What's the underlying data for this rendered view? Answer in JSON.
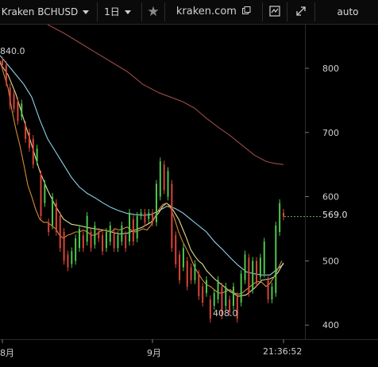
{
  "toolbar": {
    "symbol": "Kraken BCHUSD",
    "interval": "1日",
    "star_icon": "star-icon",
    "site": "kraken.com",
    "popout_icon": "popout-icon",
    "screenshot_icon": "chart-snapshot-icon",
    "fullscreen_icon": "fullscreen-icon",
    "scale": "auto"
  },
  "colors": {
    "up": "#4fc74f",
    "down": "#d9453a",
    "ma_fast": "#d98b3a",
    "ma_mid": "#e0dc96",
    "ma_slow": "#8fd3e8",
    "ma_long": "#9c4a4a"
  },
  "chart_data": {
    "type": "candlestick",
    "ylim": [
      378,
      868
    ],
    "y_ticks": [
      400,
      500,
      600,
      700,
      800
    ],
    "x_labels": [
      "8月",
      "9月",
      "21:36:52"
    ],
    "last_price": "569.0",
    "high_label": "840.0",
    "low_label": "408.0",
    "candles": [
      {
        "o": 812,
        "c": 805
      },
      {
        "o": 805,
        "c": 778
      },
      {
        "o": 770,
        "c": 742
      },
      {
        "o": 760,
        "c": 737
      },
      {
        "o": 748,
        "c": 718
      },
      {
        "o": 725,
        "c": 745
      },
      {
        "o": 712,
        "c": 690
      },
      {
        "o": 700,
        "c": 676
      },
      {
        "o": 690,
        "c": 650
      },
      {
        "o": 655,
        "c": 675
      },
      {
        "o": 635,
        "c": 570
      },
      {
        "o": 590,
        "c": 620
      },
      {
        "o": 560,
        "c": 545
      },
      {
        "o": 555,
        "c": 600
      },
      {
        "o": 590,
        "c": 545
      },
      {
        "o": 570,
        "c": 520
      },
      {
        "o": 545,
        "c": 500
      },
      {
        "o": 510,
        "c": 490
      },
      {
        "o": 495,
        "c": 515
      },
      {
        "o": 500,
        "c": 535
      },
      {
        "o": 520,
        "c": 550
      },
      {
        "o": 540,
        "c": 520
      },
      {
        "o": 530,
        "c": 570
      },
      {
        "o": 545,
        "c": 520
      },
      {
        "o": 525,
        "c": 555
      },
      {
        "o": 545,
        "c": 535
      },
      {
        "o": 540,
        "c": 515
      },
      {
        "o": 520,
        "c": 545
      },
      {
        "o": 530,
        "c": 555
      },
      {
        "o": 545,
        "c": 520
      },
      {
        "o": 520,
        "c": 540
      },
      {
        "o": 530,
        "c": 555
      },
      {
        "o": 540,
        "c": 520
      },
      {
        "o": 530,
        "c": 575
      },
      {
        "o": 565,
        "c": 530
      },
      {
        "o": 535,
        "c": 570
      },
      {
        "o": 570,
        "c": 575
      },
      {
        "o": 575,
        "c": 560
      },
      {
        "o": 565,
        "c": 575
      },
      {
        "o": 575,
        "c": 560
      },
      {
        "o": 560,
        "c": 620
      },
      {
        "o": 600,
        "c": 655
      },
      {
        "o": 650,
        "c": 610
      },
      {
        "o": 600,
        "c": 640
      },
      {
        "o": 620,
        "c": 520
      },
      {
        "o": 540,
        "c": 495
      },
      {
        "o": 510,
        "c": 470
      },
      {
        "o": 490,
        "c": 520
      },
      {
        "o": 500,
        "c": 460
      },
      {
        "o": 490,
        "c": 470
      },
      {
        "o": 470,
        "c": 495
      },
      {
        "o": 480,
        "c": 445
      },
      {
        "o": 460,
        "c": 435
      },
      {
        "o": 450,
        "c": 470
      },
      {
        "o": 440,
        "c": 410
      },
      {
        "o": 430,
        "c": 450
      },
      {
        "o": 440,
        "c": 470
      },
      {
        "o": 460,
        "c": 415
      },
      {
        "o": 430,
        "c": 460
      },
      {
        "o": 440,
        "c": 420
      },
      {
        "o": 430,
        "c": 460
      },
      {
        "o": 445,
        "c": 410
      },
      {
        "o": 435,
        "c": 480
      },
      {
        "o": 470,
        "c": 510
      },
      {
        "o": 505,
        "c": 450
      },
      {
        "o": 455,
        "c": 500
      },
      {
        "o": 500,
        "c": 465
      },
      {
        "o": 475,
        "c": 505
      },
      {
        "o": 480,
        "c": 530
      },
      {
        "o": 470,
        "c": 440
      },
      {
        "o": 440,
        "c": 460
      },
      {
        "o": 450,
        "c": 555
      },
      {
        "o": 545,
        "c": 590
      },
      {
        "o": 575,
        "c": 569
      }
    ],
    "ma_fast": [
      [
        0,
        812
      ],
      [
        5,
        790
      ],
      [
        10,
        770
      ],
      [
        15,
        735
      ],
      [
        20,
        705
      ],
      [
        25,
        680
      ],
      [
        30,
        650
      ],
      [
        35,
        618
      ],
      [
        40,
        600
      ],
      [
        45,
        580
      ],
      [
        50,
        565
      ],
      [
        55,
        560
      ],
      [
        60,
        560
      ],
      [
        65,
        555
      ],
      [
        70,
        550
      ],
      [
        75,
        540
      ],
      [
        80,
        535
      ],
      [
        85,
        540
      ],
      [
        90,
        542
      ],
      [
        95,
        545
      ],
      [
        100,
        545
      ],
      [
        105,
        548
      ],
      [
        110,
        545
      ],
      [
        115,
        540
      ],
      [
        120,
        540
      ],
      [
        125,
        545
      ],
      [
        130,
        548
      ],
      [
        135,
        547
      ],
      [
        140,
        545
      ],
      [
        145,
        550
      ],
      [
        150,
        548
      ],
      [
        155,
        550
      ],
      [
        160,
        553
      ],
      [
        165,
        548
      ],
      [
        170,
        545
      ],
      [
        175,
        547
      ],
      [
        180,
        550
      ],
      [
        185,
        548
      ],
      [
        190,
        555
      ],
      [
        195,
        568
      ],
      [
        200,
        580
      ],
      [
        205,
        588
      ],
      [
        210,
        590
      ],
      [
        215,
        582
      ],
      [
        220,
        565
      ],
      [
        225,
        545
      ],
      [
        230,
        530
      ],
      [
        235,
        518
      ],
      [
        240,
        505
      ],
      [
        245,
        490
      ],
      [
        250,
        480
      ],
      [
        255,
        470
      ],
      [
        260,
        463
      ],
      [
        265,
        460
      ],
      [
        270,
        455
      ],
      [
        275,
        450
      ],
      [
        280,
        450
      ],
      [
        285,
        453
      ],
      [
        290,
        455
      ],
      [
        295,
        450
      ],
      [
        300,
        448
      ],
      [
        305,
        450
      ],
      [
        310,
        455
      ],
      [
        315,
        460
      ],
      [
        320,
        465
      ],
      [
        325,
        468
      ],
      [
        330,
        466
      ],
      [
        335,
        460
      ],
      [
        340,
        465
      ],
      [
        345,
        475
      ],
      [
        350,
        488
      ],
      [
        355,
        500
      ]
    ],
    "ma_mid": [
      [
        0,
        808
      ],
      [
        10,
        790
      ],
      [
        20,
        760
      ],
      [
        30,
        720
      ],
      [
        40,
        680
      ],
      [
        50,
        640
      ],
      [
        60,
        610
      ],
      [
        70,
        585
      ],
      [
        80,
        565
      ],
      [
        90,
        557
      ],
      [
        100,
        555
      ],
      [
        110,
        552
      ],
      [
        120,
        550
      ],
      [
        130,
        548
      ],
      [
        140,
        545
      ],
      [
        150,
        542
      ],
      [
        160,
        543
      ],
      [
        170,
        548
      ],
      [
        180,
        553
      ],
      [
        190,
        560
      ],
      [
        200,
        575
      ],
      [
        205,
        585
      ],
      [
        210,
        590
      ],
      [
        215,
        585
      ],
      [
        220,
        575
      ],
      [
        225,
        565
      ],
      [
        230,
        550
      ],
      [
        235,
        535
      ],
      [
        240,
        518
      ],
      [
        245,
        508
      ],
      [
        250,
        500
      ],
      [
        255,
        495
      ],
      [
        260,
        485
      ],
      [
        270,
        472
      ],
      [
        280,
        462
      ],
      [
        290,
        452
      ],
      [
        300,
        445
      ],
      [
        310,
        447
      ],
      [
        320,
        457
      ],
      [
        330,
        470
      ],
      [
        340,
        472
      ],
      [
        345,
        475
      ],
      [
        350,
        482
      ],
      [
        357,
        497
      ]
    ],
    "ma_slow": [
      [
        0,
        820
      ],
      [
        10,
        805
      ],
      [
        20,
        790
      ],
      [
        30,
        775
      ],
      [
        40,
        755
      ],
      [
        50,
        720
      ],
      [
        60,
        690
      ],
      [
        70,
        670
      ],
      [
        80,
        650
      ],
      [
        90,
        630
      ],
      [
        100,
        615
      ],
      [
        110,
        605
      ],
      [
        120,
        598
      ],
      [
        130,
        590
      ],
      [
        140,
        583
      ],
      [
        150,
        578
      ],
      [
        160,
        574
      ],
      [
        170,
        572
      ],
      [
        180,
        571
      ],
      [
        190,
        572
      ],
      [
        200,
        578
      ],
      [
        210,
        585
      ],
      [
        220,
        582
      ],
      [
        230,
        575
      ],
      [
        240,
        565
      ],
      [
        250,
        555
      ],
      [
        260,
        545
      ],
      [
        270,
        530
      ],
      [
        280,
        518
      ],
      [
        290,
        505
      ],
      [
        300,
        493
      ],
      [
        310,
        483
      ],
      [
        320,
        480
      ],
      [
        330,
        478
      ],
      [
        340,
        478
      ],
      [
        350,
        488
      ],
      [
        357,
        495
      ]
    ],
    "ma_long": [
      [
        60,
        868
      ],
      [
        80,
        855
      ],
      [
        100,
        840
      ],
      [
        120,
        825
      ],
      [
        140,
        810
      ],
      [
        160,
        795
      ],
      [
        180,
        775
      ],
      [
        200,
        762
      ],
      [
        215,
        755
      ],
      [
        230,
        748
      ],
      [
        245,
        738
      ],
      [
        260,
        722
      ],
      [
        275,
        708
      ],
      [
        290,
        695
      ],
      [
        305,
        680
      ],
      [
        320,
        665
      ],
      [
        335,
        655
      ],
      [
        345,
        652
      ],
      [
        357,
        650
      ]
    ]
  }
}
